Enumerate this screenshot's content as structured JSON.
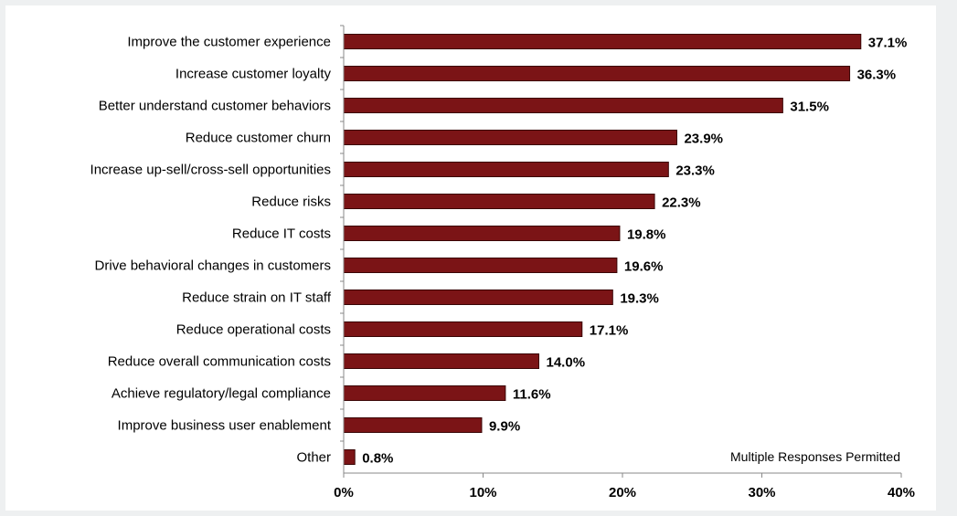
{
  "chart_data": {
    "type": "bar",
    "orientation": "horizontal",
    "categories": [
      "Improve the customer experience",
      "Increase customer loyalty",
      "Better understand customer behaviors",
      "Reduce customer churn",
      "Increase up-sell/cross-sell opportunities",
      "Reduce risks",
      "Reduce IT costs",
      "Drive behavioral changes in customers",
      "Reduce strain on IT staff",
      "Reduce operational costs",
      "Reduce overall communication costs",
      "Achieve regulatory/legal compliance",
      "Improve business user enablement",
      "Other"
    ],
    "values": [
      37.1,
      36.3,
      31.5,
      23.9,
      23.3,
      22.3,
      19.8,
      19.6,
      19.3,
      17.1,
      14.0,
      11.6,
      9.9,
      0.8
    ],
    "value_labels": [
      "37.1%",
      "36.3%",
      "31.5%",
      "23.9%",
      "23.3%",
      "22.3%",
      "19.8%",
      "19.6%",
      "19.3%",
      "17.1%",
      "14.0%",
      "11.6%",
      "9.9%",
      "0.8%"
    ],
    "xlim": [
      0,
      40
    ],
    "x_ticks": [
      0,
      10,
      20,
      30,
      40
    ],
    "x_tick_labels": [
      "0%",
      "10%",
      "20%",
      "30%",
      "40%"
    ],
    "annotation": "Multiple Responses Permitted",
    "grid": false,
    "bar_color": "#7b1416",
    "bar_edge_color": "#3a0506"
  }
}
